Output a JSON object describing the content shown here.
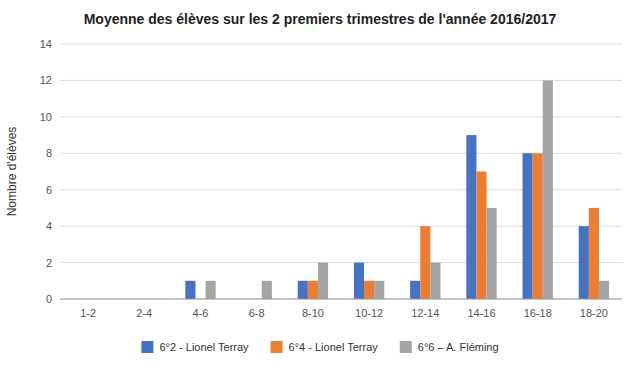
{
  "chart_data": {
    "type": "bar",
    "title": "Moyenne des élèves sur les 2 premiers trimestres de l'année 2016/2017",
    "ylabel": "Nombre d'élèves",
    "categories": [
      "1-2",
      "2-4",
      "4-6",
      "6-8",
      "8-10",
      "10-12",
      "12-14",
      "14-16",
      "16-18",
      "18-20"
    ],
    "series": [
      {
        "name": "6°2 - Lionel Terray",
        "color": "#4472C4",
        "values": [
          0,
          0,
          1,
          0,
          1,
          2,
          1,
          9,
          8,
          4
        ]
      },
      {
        "name": "6°4 - Lionel Terray",
        "color": "#ED7D31",
        "values": [
          0,
          0,
          0,
          0,
          1,
          1,
          4,
          7,
          8,
          5
        ]
      },
      {
        "name": "6°6 – A. Fléming",
        "color": "#A5A5A5",
        "values": [
          0,
          0,
          1,
          1,
          2,
          1,
          2,
          5,
          12,
          1
        ]
      }
    ],
    "ylim": [
      0,
      14
    ],
    "yticks": [
      0,
      2,
      4,
      6,
      8,
      10,
      12,
      14
    ],
    "grid": true,
    "legend": "bottom"
  }
}
